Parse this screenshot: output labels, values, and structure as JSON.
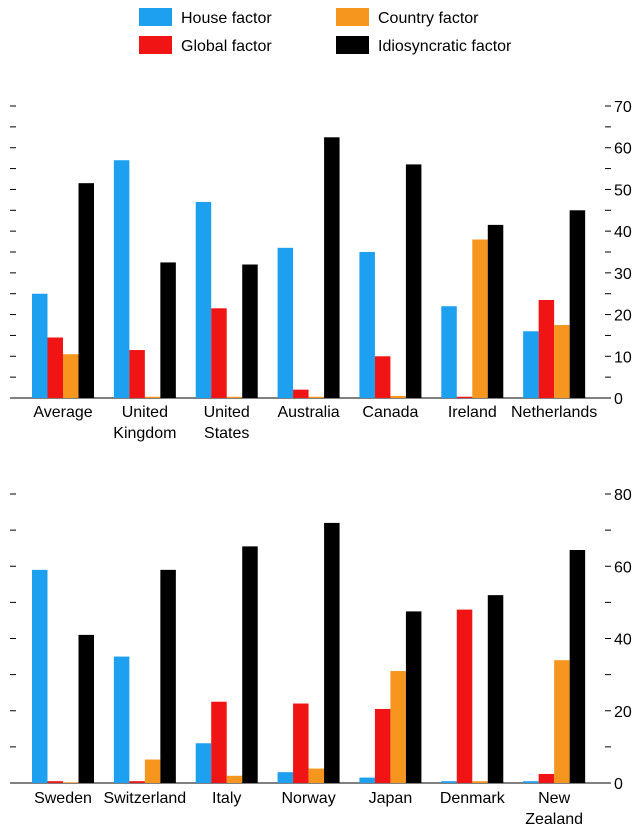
{
  "legend": {
    "items": [
      {
        "key": "house",
        "label": "House factor",
        "color": "#1ea0f0"
      },
      {
        "key": "global",
        "label": "Global factor",
        "color": "#f01414"
      },
      {
        "key": "country",
        "label": "Country factor",
        "color": "#f7961e"
      },
      {
        "key": "idio",
        "label": "Idiosyncratic factor",
        "color": "#000000"
      }
    ]
  },
  "chart_data": [
    {
      "type": "bar",
      "categories": [
        "Average",
        "United\nKingdom",
        "United\nStates",
        "Australia",
        "Canada",
        "Ireland",
        "Netherlands"
      ],
      "ylim": [
        0,
        70
      ],
      "yticks": [
        0,
        10,
        20,
        30,
        40,
        50,
        60,
        70
      ],
      "series": [
        {
          "name": "House factor",
          "values": [
            25,
            57,
            47,
            36,
            35,
            22,
            16
          ]
        },
        {
          "name": "Global factor",
          "values": [
            14.5,
            11.5,
            21.5,
            2,
            10,
            0.3,
            23.5
          ]
        },
        {
          "name": "Country factor",
          "values": [
            10.5,
            0.3,
            0.3,
            0.3,
            0.5,
            38,
            17.5
          ]
        },
        {
          "name": "Idiosyncratic factor",
          "values": [
            51.5,
            32.5,
            32,
            62.5,
            56,
            41.5,
            45
          ]
        }
      ]
    },
    {
      "type": "bar",
      "categories": [
        "Sweden",
        "Switzerland",
        "Italy",
        "Norway",
        "Japan",
        "Denmark",
        "New\nZealand"
      ],
      "ylim": [
        0,
        80
      ],
      "yticks": [
        0,
        20,
        40,
        60,
        80
      ],
      "series": [
        {
          "name": "House factor",
          "values": [
            59,
            35,
            11,
            3,
            1.5,
            0.5,
            0.5
          ]
        },
        {
          "name": "Global factor",
          "values": [
            0.5,
            0.5,
            22.5,
            22,
            20.5,
            48,
            2.5
          ]
        },
        {
          "name": "Country factor",
          "values": [
            0.2,
            6.5,
            2,
            4,
            31,
            0.5,
            34
          ]
        },
        {
          "name": "Idiosyncratic factor",
          "values": [
            41,
            59,
            65.5,
            72,
            47.5,
            52,
            64.5
          ]
        }
      ]
    }
  ]
}
